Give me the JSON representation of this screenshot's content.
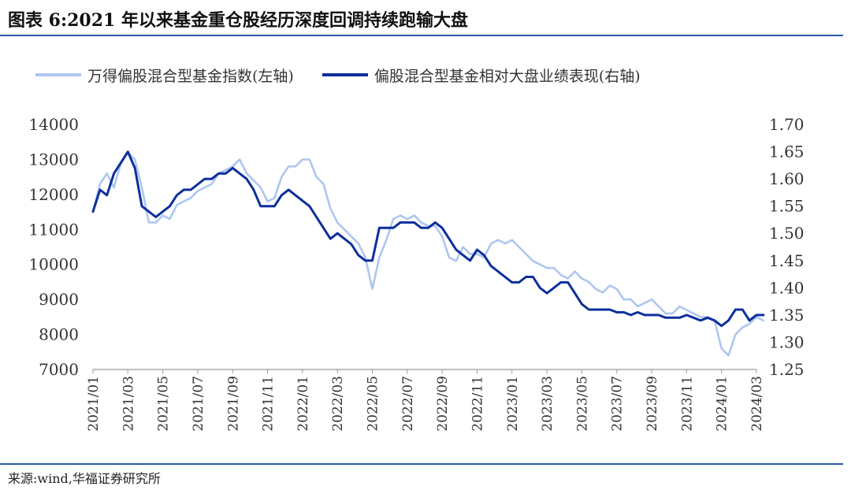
{
  "title": "图表 6:2021 年以来基金重仓股经历深度回调持续跑输大盘",
  "source": "来源:wind,华福证券研究所",
  "chart_data": {
    "type": "line",
    "x_ticks": [
      "2021/01",
      "2021/03",
      "2021/05",
      "2021/07",
      "2021/09",
      "2021/11",
      "2022/01",
      "2022/03",
      "2022/05",
      "2022/07",
      "2022/09",
      "2022/11",
      "2023/01",
      "2023/03",
      "2023/05",
      "2023/07",
      "2023/09",
      "2023/11",
      "2024/01",
      "2024/03"
    ],
    "y_left": {
      "ticks": [
        7000,
        8000,
        9000,
        10000,
        11000,
        12000,
        13000,
        14000
      ],
      "ylim": [
        7000,
        14000
      ]
    },
    "y_right": {
      "ticks": [
        "1.25",
        "1.30",
        "1.35",
        "1.40",
        "1.45",
        "1.50",
        "1.55",
        "1.60",
        "1.65",
        "1.70"
      ],
      "ylim": [
        1.25,
        1.7
      ]
    },
    "legend_position": "top",
    "series": [
      {
        "name": "万得偏股混合型基金指数(左轴)",
        "axis": "left",
        "color": "#aec6f0",
        "x": [
          0,
          0.2,
          0.4,
          0.6,
          0.8,
          1.0,
          1.2,
          1.4,
          1.6,
          1.8,
          2.0,
          2.2,
          2.4,
          2.6,
          2.8,
          3.0,
          3.2,
          3.4,
          3.6,
          3.8,
          4.0,
          4.2,
          4.4,
          4.6,
          4.8,
          5.0,
          5.2,
          5.4,
          5.6,
          5.8,
          6.0,
          6.2,
          6.4,
          6.6,
          6.8,
          7.0,
          7.2,
          7.4,
          7.6,
          7.8,
          8.0,
          8.2,
          8.4,
          8.6,
          8.8,
          9.0,
          9.2,
          9.4,
          9.6,
          9.8,
          10.0,
          10.2,
          10.4,
          10.6,
          10.8,
          11.0,
          11.2,
          11.4,
          11.6,
          11.8,
          12.0,
          12.2,
          12.4,
          12.6,
          12.8,
          13.0,
          13.2,
          13.4,
          13.6,
          13.8,
          14.0,
          14.2,
          14.4,
          14.6,
          14.8,
          15.0,
          15.2,
          15.4,
          15.6,
          15.8,
          16.0,
          16.2,
          16.4,
          16.6,
          16.8,
          17.0,
          17.2,
          17.4,
          17.6,
          17.8,
          18.0,
          18.2,
          18.4,
          18.6,
          18.8,
          19.0,
          19.2
        ],
        "y": [
          11500,
          12300,
          12600,
          12200,
          12900,
          13200,
          13000,
          12200,
          11200,
          11200,
          11400,
          11300,
          11700,
          11800,
          11900,
          12100,
          12200,
          12300,
          12600,
          12700,
          12800,
          13000,
          12600,
          12400,
          12200,
          11800,
          11900,
          12500,
          12800,
          12800,
          13000,
          13000,
          12500,
          12300,
          11600,
          11200,
          11000,
          10800,
          10600,
          10200,
          9300,
          10200,
          10700,
          11300,
          11400,
          11300,
          11400,
          11200,
          11100,
          11100,
          10800,
          10200,
          10100,
          10500,
          10300,
          10300,
          10200,
          10600,
          10700,
          10600,
          10700,
          10500,
          10300,
          10100,
          10000,
          9900,
          9900,
          9700,
          9600,
          9800,
          9600,
          9500,
          9300,
          9200,
          9400,
          9300,
          9000,
          9000,
          8800,
          8900,
          9000,
          8800,
          8600,
          8600,
          8800,
          8700,
          8600,
          8500,
          8500,
          8400,
          7600,
          7400,
          8000,
          8200,
          8300,
          8500,
          8400
        ]
      },
      {
        "name": "偏股混合型基金相对大盘业绩表现(右轴)",
        "axis": "right",
        "color": "#0d2f9c",
        "x": [
          0,
          0.2,
          0.4,
          0.6,
          0.8,
          1.0,
          1.2,
          1.4,
          1.6,
          1.8,
          2.0,
          2.2,
          2.4,
          2.6,
          2.8,
          3.0,
          3.2,
          3.4,
          3.6,
          3.8,
          4.0,
          4.2,
          4.4,
          4.6,
          4.8,
          5.0,
          5.2,
          5.4,
          5.6,
          5.8,
          6.0,
          6.2,
          6.4,
          6.6,
          6.8,
          7.0,
          7.2,
          7.4,
          7.6,
          7.8,
          8.0,
          8.2,
          8.4,
          8.6,
          8.8,
          9.0,
          9.2,
          9.4,
          9.6,
          9.8,
          10.0,
          10.2,
          10.4,
          10.6,
          10.8,
          11.0,
          11.2,
          11.4,
          11.6,
          11.8,
          12.0,
          12.2,
          12.4,
          12.6,
          12.8,
          13.0,
          13.2,
          13.4,
          13.6,
          13.8,
          14.0,
          14.2,
          14.4,
          14.6,
          14.8,
          15.0,
          15.2,
          15.4,
          15.6,
          15.8,
          16.0,
          16.2,
          16.4,
          16.6,
          16.8,
          17.0,
          17.2,
          17.4,
          17.6,
          17.8,
          18.0,
          18.2,
          18.4,
          18.6,
          18.8,
          19.0,
          19.2
        ],
        "y": [
          1.54,
          1.58,
          1.57,
          1.61,
          1.63,
          1.65,
          1.62,
          1.55,
          1.54,
          1.53,
          1.54,
          1.55,
          1.57,
          1.58,
          1.58,
          1.59,
          1.6,
          1.6,
          1.61,
          1.61,
          1.62,
          1.61,
          1.6,
          1.58,
          1.55,
          1.55,
          1.55,
          1.57,
          1.58,
          1.57,
          1.56,
          1.55,
          1.53,
          1.51,
          1.49,
          1.5,
          1.49,
          1.48,
          1.46,
          1.45,
          1.45,
          1.51,
          1.51,
          1.51,
          1.52,
          1.52,
          1.52,
          1.51,
          1.51,
          1.52,
          1.51,
          1.49,
          1.47,
          1.46,
          1.45,
          1.47,
          1.46,
          1.44,
          1.43,
          1.42,
          1.41,
          1.41,
          1.42,
          1.42,
          1.4,
          1.39,
          1.4,
          1.41,
          1.41,
          1.39,
          1.37,
          1.36,
          1.36,
          1.36,
          1.36,
          1.355,
          1.355,
          1.35,
          1.355,
          1.35,
          1.35,
          1.35,
          1.345,
          1.345,
          1.345,
          1.35,
          1.345,
          1.34,
          1.345,
          1.34,
          1.33,
          1.34,
          1.36,
          1.36,
          1.34,
          1.35,
          1.35
        ]
      }
    ]
  }
}
